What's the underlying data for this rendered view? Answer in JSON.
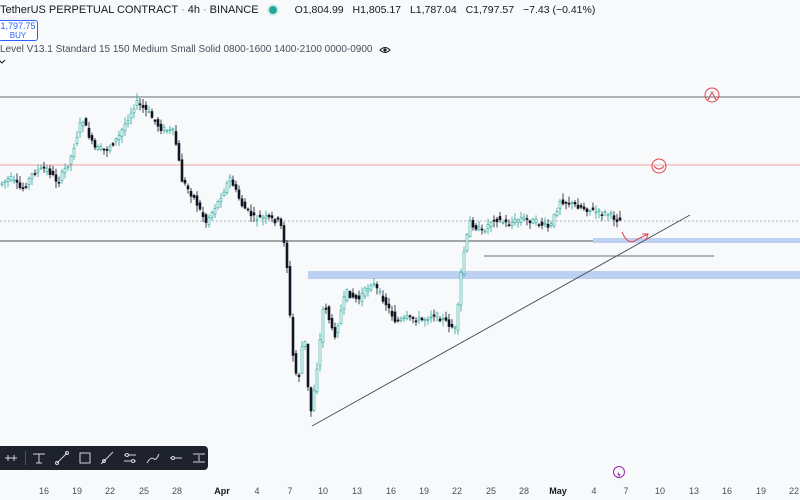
{
  "header": {
    "symbol": "TetherUS PERPETUAL CONTRACT",
    "interval": "4h",
    "exchange": "BINANCE",
    "ohlc": {
      "o_label": "O",
      "o": "1,804.99",
      "h_label": "H",
      "h": "1,805.17",
      "l_label": "L",
      "l": "1,787.04",
      "c_label": "C",
      "c": "1,797.57",
      "change": "−7.43 (−0.41%)"
    },
    "status_color": "#26a69a"
  },
  "trade_button": {
    "price": "1,797.75",
    "label": "BUY"
  },
  "indicator": {
    "label": "Level V13.1 Standard 15 150 Medium Small Solid 0800-1600 1400-2100 0000-0900"
  },
  "time_axis": {
    "ticks": [
      "16",
      "19",
      "22",
      "25",
      "28",
      "Apr",
      "4",
      "7",
      "10",
      "13",
      "16",
      "19",
      "22",
      "25",
      "28",
      "May",
      "4",
      "7",
      "10",
      "13",
      "16",
      "19",
      "22"
    ],
    "bold_ticks": [
      "Apr",
      "May"
    ]
  },
  "drawing_toolbar": {
    "tools": [
      "horizontal-line-icon",
      "cross-line-icon",
      "trend-line-icon",
      "rectangle-icon",
      "ray-icon",
      "parallel-channel-icon",
      "brush-icon",
      "horizontal-ray-icon",
      "price-range-icon"
    ]
  },
  "colors": {
    "up": "#26a69a",
    "down": "#131722",
    "zone": "#bcd0f2",
    "red_level": "#f0a3a3",
    "annotation": "#e0434b",
    "accent": "#2962ff"
  }
}
